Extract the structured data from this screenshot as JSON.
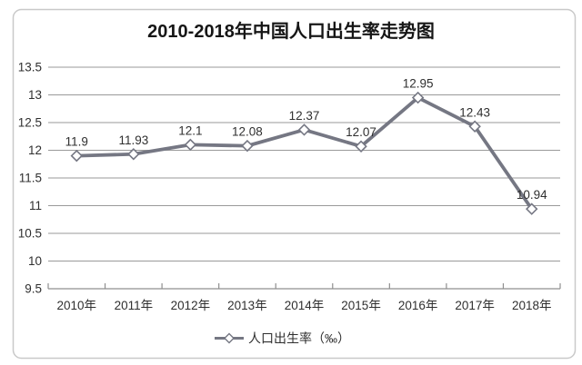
{
  "chart_data": {
    "type": "line",
    "title": "2010-2018年中国人口出生率走势图",
    "categories": [
      "2010年",
      "2011年",
      "2012年",
      "2013年",
      "2014年",
      "2015年",
      "2016年",
      "2017年",
      "2018年"
    ],
    "series": [
      {
        "name": "人口出生率（‰）",
        "values": [
          11.9,
          11.93,
          12.1,
          12.08,
          12.37,
          12.07,
          12.95,
          12.43,
          10.94
        ]
      }
    ],
    "data_labels": [
      "11.9",
      "11.93",
      "12.1",
      "12.08",
      "12.37",
      "12.07",
      "12.95",
      "12.43",
      "10.94"
    ],
    "xlabel": "",
    "ylabel": "",
    "ylim": [
      9.5,
      13.5
    ],
    "ytick_step": 0.5,
    "ytick_labels": [
      "9.5",
      "10",
      "10.5",
      "11",
      "11.5",
      "12",
      "12.5",
      "13",
      "13.5"
    ],
    "grid": "horizontal",
    "legend_label": "人口出生率（‰）",
    "legend_position": "bottom",
    "marker": "open-diamond"
  },
  "colors": {
    "line": "#757783",
    "marker_fill": "#ffffff",
    "marker_stroke": "#757783",
    "gridline": "#9a9a9a",
    "axis": "#8f8f8f",
    "tick": "#8f8f8f",
    "text": "#2f2f2f",
    "title": "#161616",
    "frame_border": "#c9c9c9",
    "plot_background": "#fdfcfc"
  }
}
